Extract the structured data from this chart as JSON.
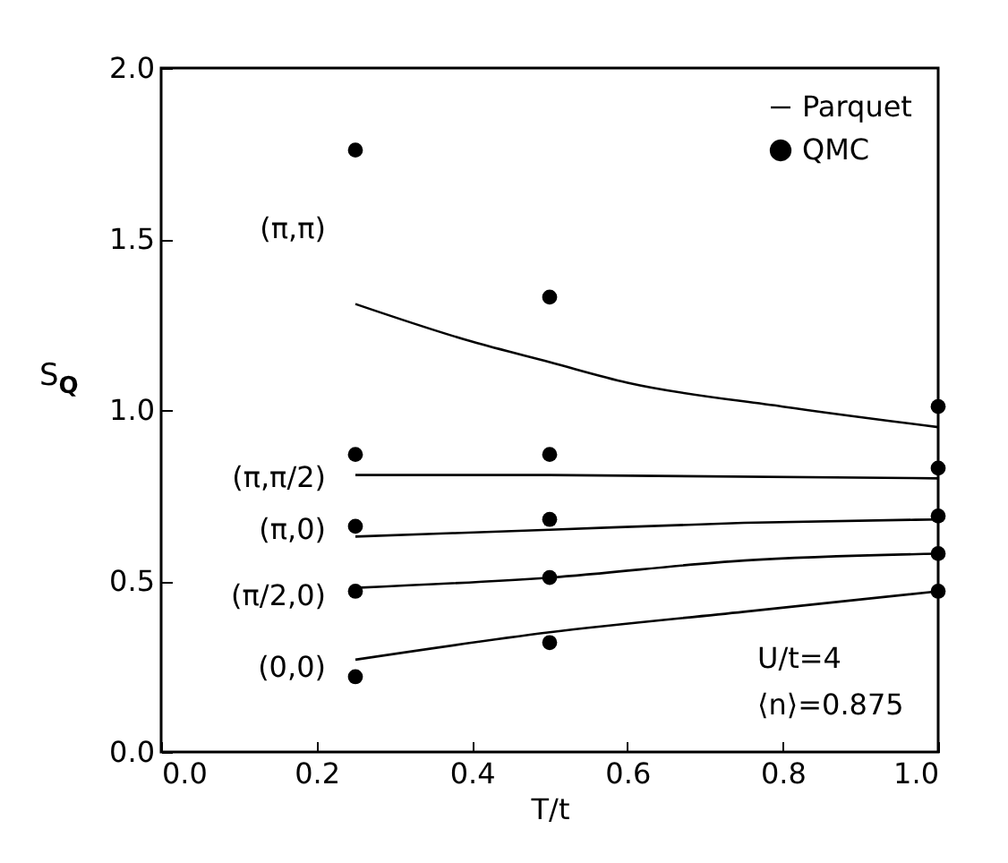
{
  "chart_data": {
    "type": "line",
    "xlabel": "T/t",
    "ylabel": "S$_{Q}$",
    "xlim": [
      0.0,
      1.0
    ],
    "xticks": [
      {
        "value": 0,
        "label": "0.0"
      },
      0.2,
      0.4,
      0.6,
      0.8,
      {
        "value": 1,
        "label": "1.0"
      }
    ],
    "ylim": [
      0.0,
      2.0
    ],
    "yticks": [
      {
        "value": 0,
        "label": "0.0"
      },
      0.5,
      {
        "value": 1,
        "label": "1.0"
      },
      1.5,
      {
        "value": 2,
        "label": "2.0"
      }
    ],
    "grid": false,
    "legend": "top right",
    "line_style": "solid",
    "series": [
      {
        "name": "Parquet",
        "color": "#000000",
        "x": [
          0.25,
          0.4,
          0.5,
          0.6,
          0.8,
          1.0
        ],
        "values": [
          1.31,
          1.2,
          1.14,
          1.08,
          1.01,
          0.95
        ]
      },
      {
        "color": "#000000",
        "x": [
          0.25,
          0.5,
          1.0
        ],
        "values": [
          0.81,
          0.81,
          0.8
        ]
      },
      {
        "color": "#000000",
        "x": [
          0.25,
          0.5,
          0.75,
          1.0
        ],
        "values": [
          0.63,
          0.65,
          0.67,
          0.68
        ]
      },
      {
        "color": "#000000",
        "x": [
          0.25,
          0.5,
          0.75,
          1.0
        ],
        "values": [
          0.48,
          0.51,
          0.56,
          0.58
        ]
      },
      {
        "color": "#000000",
        "x": [
          0.25,
          0.5,
          0.75,
          1.0
        ],
        "values": [
          0.27,
          0.35,
          0.41,
          0.47
        ]
      },
      {
        "name": "QMC",
        "type": "scatter",
        "marker": "circle",
        "color": "#000000",
        "x": [
          0.25,
          0.25,
          0.25,
          0.25,
          0.25,
          0.5,
          0.5,
          0.5,
          0.5,
          0.5,
          1.0,
          1.0,
          1.0,
          1.0,
          1.0
        ],
        "values": [
          1.76,
          0.87,
          0.66,
          0.47,
          0.22,
          1.33,
          0.87,
          0.68,
          0.51,
          0.32,
          1.01,
          0.83,
          0.69,
          0.58,
          0.47
        ]
      }
    ],
    "annotations": [
      "(π,π)",
      "(π,π/2)",
      "(π,0)",
      "(π/2,0)",
      "(0,0)",
      "U/t=4",
      "⟨n⟩=0.875"
    ]
  }
}
